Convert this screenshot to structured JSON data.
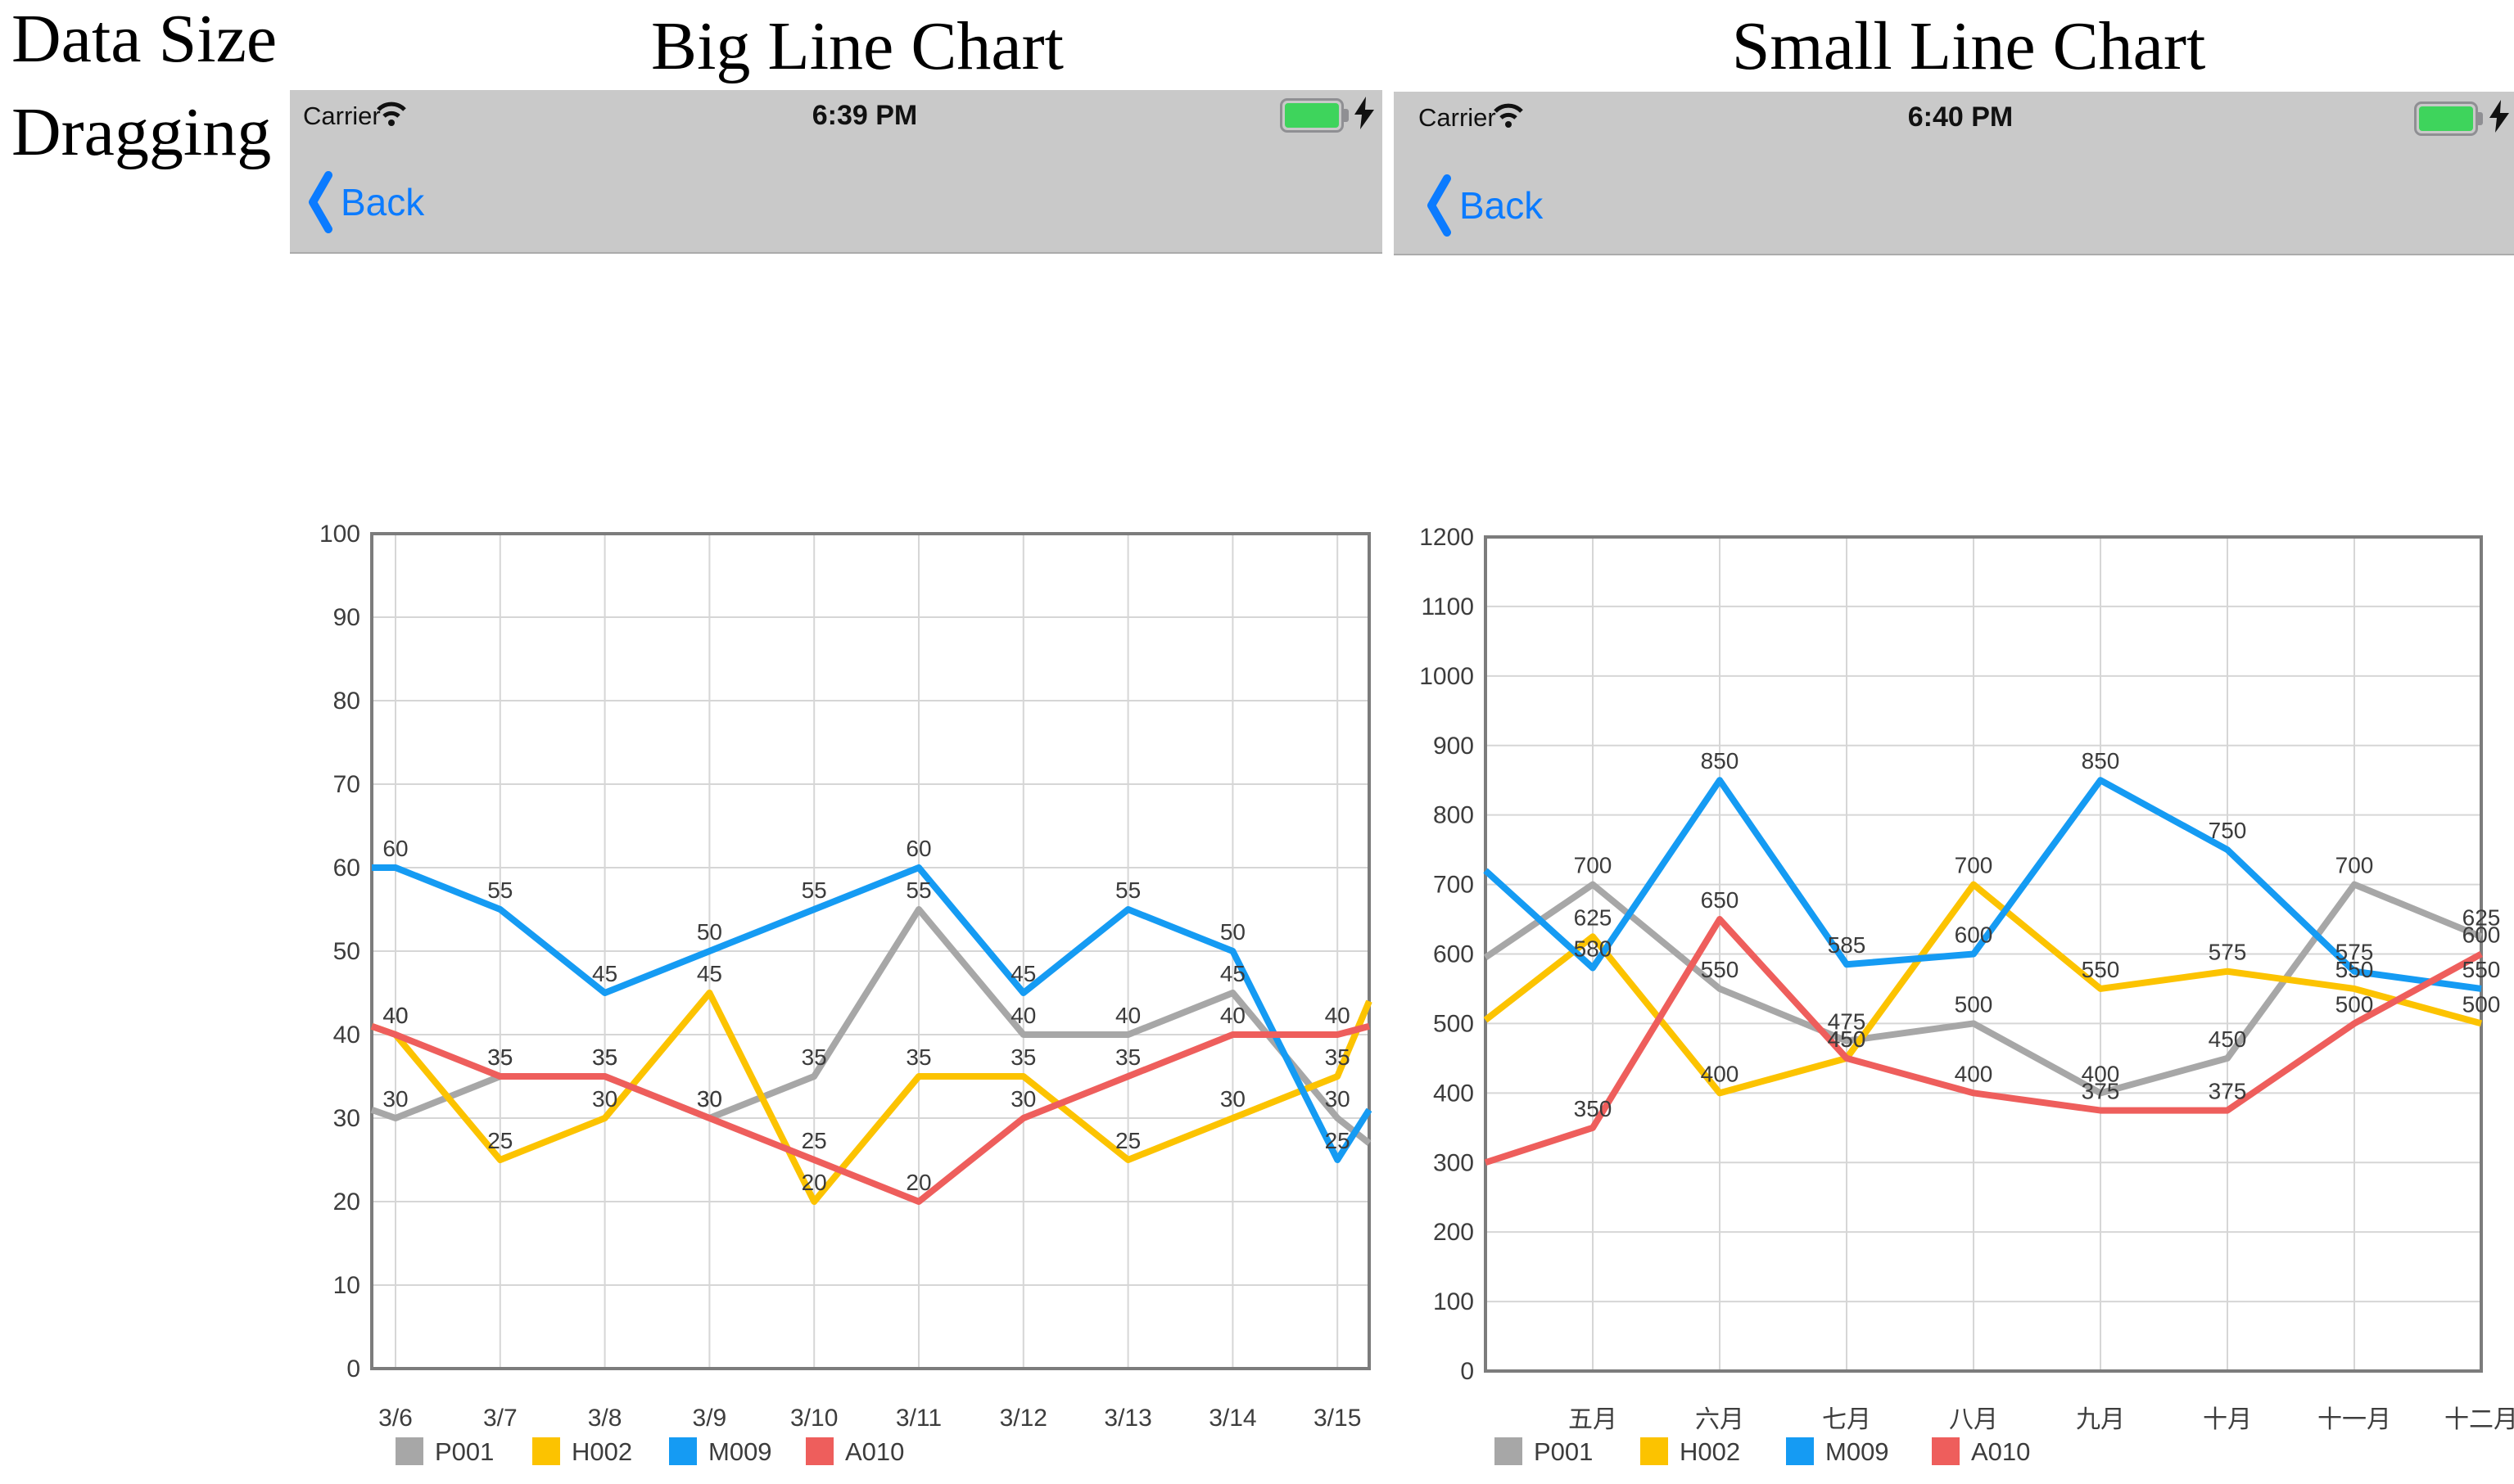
{
  "document": {
    "caption_line1": "Data Size",
    "caption_line2": "Dragging",
    "left_title": "Big Line Chart",
    "right_title": "Small Line Chart"
  },
  "phones": [
    {
      "carrier": "Carrier",
      "time": "6:39 PM",
      "back_label": "Back"
    },
    {
      "carrier": "Carrier",
      "time": "6:40 PM",
      "back_label": "Back"
    }
  ],
  "colors": {
    "header_gray": "#c9c9c9",
    "ios_blue": "#0b7bff",
    "battery_green": "#3ed45c",
    "series_gray": "#a7a7a7",
    "series_yellow": "#fcc300",
    "series_blue": "#159bf3",
    "series_red": "#ee5e5c",
    "grid_line": "#d6d6d6",
    "plot_border": "#7c7c7c",
    "label_text": "#3b3b3b"
  },
  "chart_data": [
    {
      "type": "line",
      "title": "Big Line Chart",
      "categories": [
        "3/6",
        "3/7",
        "3/8",
        "3/9",
        "3/10",
        "3/11",
        "3/12",
        "3/13",
        "3/14",
        "3/15"
      ],
      "xlabel": "",
      "ylabel": "",
      "ylim": [
        0,
        100
      ],
      "ytick": 10,
      "grid": true,
      "legend_position": "bottom",
      "value_labels": true,
      "series": [
        {
          "name": "P001",
          "color": "#a7a7a7",
          "values": [
            30,
            35,
            35,
            30,
            35,
            55,
            40,
            40,
            45,
            30
          ],
          "edge_left": 31,
          "edge_right": 27
        },
        {
          "name": "H002",
          "color": "#fcc300",
          "values": [
            40,
            25,
            30,
            45,
            20,
            35,
            35,
            25,
            30,
            35
          ],
          "edge_left": 41,
          "edge_right": 44
        },
        {
          "name": "M009",
          "color": "#159bf3",
          "values": [
            60,
            55,
            45,
            50,
            55,
            60,
            45,
            55,
            50,
            25
          ],
          "edge_left": 60,
          "edge_right": 31
        },
        {
          "name": "A010",
          "color": "#ee5e5c",
          "values": [
            40,
            35,
            35,
            30,
            25,
            20,
            30,
            35,
            40,
            40
          ],
          "edge_left": 41,
          "edge_right": 41
        }
      ]
    },
    {
      "type": "line",
      "title": "Small Line Chart",
      "categories": [
        "五月",
        "六月",
        "七月",
        "八月",
        "九月",
        "十月",
        "十一月",
        "十二月"
      ],
      "xlabel": "",
      "ylabel": "",
      "ylim": [
        0,
        1200
      ],
      "ytick": 100,
      "grid": true,
      "legend_position": "bottom",
      "value_labels": true,
      "series": [
        {
          "name": "P001",
          "color": "#a7a7a7",
          "values": [
            700,
            550,
            475,
            500,
            400,
            450,
            700,
            625
          ],
          "edge_left": 595
        },
        {
          "name": "H002",
          "color": "#fcc300",
          "values": [
            625,
            400,
            450,
            700,
            550,
            575,
            550,
            500
          ],
          "edge_left": 505
        },
        {
          "name": "M009",
          "color": "#159bf3",
          "values": [
            580,
            850,
            585,
            600,
            850,
            750,
            575,
            550
          ],
          "edge_left": 720
        },
        {
          "name": "A010",
          "color": "#ee5e5c",
          "values": [
            350,
            650,
            450,
            400,
            375,
            375,
            500,
            600
          ],
          "edge_left": 300
        }
      ]
    }
  ]
}
